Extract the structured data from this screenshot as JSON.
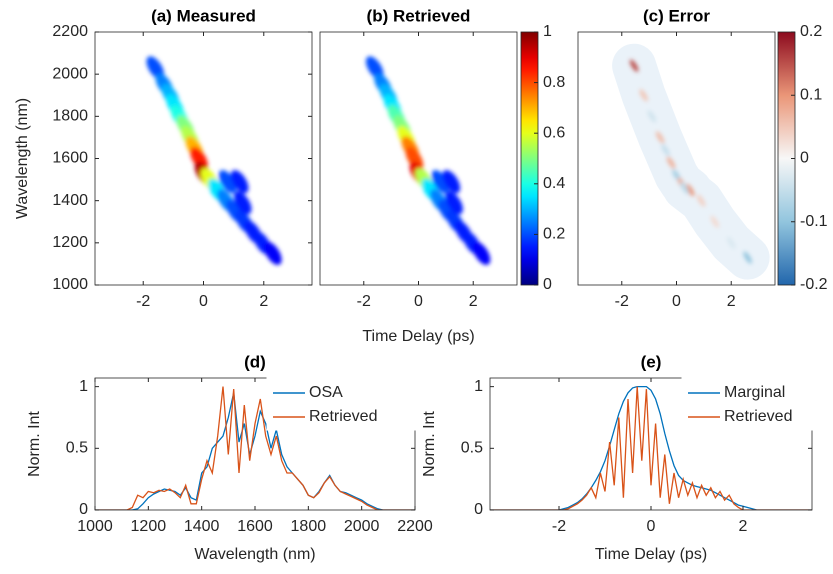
{
  "chart_data": [
    {
      "type": "heatmap",
      "title": "(a) Measured",
      "ylabel": "Wavelength (nm)",
      "x": [
        -1.6,
        -1.3,
        -1.1,
        -0.95,
        -0.8,
        -0.6,
        -0.45,
        -0.3,
        -0.15,
        0,
        0.2,
        0.45,
        0.75,
        1.05,
        1.35,
        1.65,
        1.95,
        2.3,
        0.8,
        1.2,
        1.3
      ],
      "y": [
        2030,
        1950,
        1900,
        1850,
        1800,
        1750,
        1700,
        1650,
        1600,
        1530,
        1500,
        1450,
        1400,
        1350,
        1300,
        1250,
        1200,
        1150,
        1490,
        1490,
        1390
      ],
      "values": [
        0.2,
        0.25,
        0.3,
        0.35,
        0.4,
        0.5,
        0.55,
        0.7,
        0.85,
        0.95,
        0.6,
        0.35,
        0.25,
        0.2,
        0.18,
        0.15,
        0.15,
        0.12,
        0.2,
        0.15,
        0.15
      ],
      "xlim": [
        -3.6,
        3.6
      ],
      "ylim": [
        1000,
        2200
      ],
      "xticks": [
        -2,
        0,
        2
      ],
      "yticks": [
        1000,
        1200,
        1400,
        1600,
        1800,
        2000,
        2200
      ],
      "clim": [
        0,
        1
      ],
      "colormap": "jet"
    },
    {
      "type": "heatmap",
      "title": "(b) Retrieved",
      "xlabel": "Time Delay (ps)",
      "x": [
        -1.6,
        -1.3,
        -1.1,
        -0.95,
        -0.8,
        -0.6,
        -0.45,
        -0.3,
        -0.15,
        0,
        0.2,
        0.45,
        0.75,
        1.05,
        1.35,
        1.65,
        1.95,
        2.3,
        0.8,
        1.2,
        1.3
      ],
      "y": [
        2030,
        1950,
        1900,
        1850,
        1800,
        1750,
        1700,
        1650,
        1600,
        1530,
        1500,
        1450,
        1400,
        1350,
        1300,
        1250,
        1200,
        1150,
        1490,
        1490,
        1390
      ],
      "values": [
        0.2,
        0.25,
        0.3,
        0.35,
        0.45,
        0.5,
        0.6,
        0.75,
        0.8,
        0.9,
        0.55,
        0.35,
        0.25,
        0.2,
        0.18,
        0.15,
        0.15,
        0.12,
        0.2,
        0.15,
        0.15
      ],
      "xlim": [
        -3.6,
        3.6
      ],
      "ylim": [
        1000,
        2200
      ],
      "xticks": [
        -2,
        0,
        2
      ],
      "clim": [
        0,
        1
      ],
      "colormap": "jet",
      "colorbar": true,
      "cticks": [
        0,
        0.2,
        0.4,
        0.6,
        0.8,
        1
      ]
    },
    {
      "type": "heatmap",
      "title": "(c) Error",
      "x": [
        -1.55,
        -1.2,
        -0.9,
        -0.6,
        -0.4,
        -0.2,
        0,
        0.2,
        0.5,
        0.3,
        0.9,
        1.4,
        2.0,
        2.6
      ],
      "y": [
        2040,
        1900,
        1800,
        1700,
        1640,
        1580,
        1520,
        1480,
        1450,
        1460,
        1400,
        1300,
        1200,
        1130
      ],
      "values": [
        0.15,
        0.05,
        -0.04,
        0.06,
        -0.05,
        0.07,
        -0.08,
        0.08,
        0.1,
        -0.06,
        0.04,
        0.03,
        -0.03,
        -0.1
      ],
      "xlim": [
        -3.6,
        3.6
      ],
      "ylim": [
        1000,
        2200
      ],
      "xticks": [
        -2,
        0,
        2
      ],
      "clim": [
        -0.2,
        0.2
      ],
      "colormap": "RdBu",
      "colorbar": true,
      "cticks": [
        -0.2,
        -0.1,
        0,
        0.1,
        0.2
      ]
    },
    {
      "type": "line",
      "title": "(d)",
      "xlabel": "Wavelength (nm)",
      "ylabel": "Norm. Int",
      "legend": "northeast",
      "x": [
        1000,
        1020,
        1040,
        1060,
        1080,
        1100,
        1120,
        1140,
        1160,
        1180,
        1200,
        1220,
        1240,
        1260,
        1280,
        1300,
        1320,
        1340,
        1360,
        1380,
        1400,
        1420,
        1440,
        1460,
        1480,
        1500,
        1520,
        1540,
        1560,
        1580,
        1600,
        1620,
        1640,
        1660,
        1680,
        1700,
        1720,
        1740,
        1760,
        1780,
        1800,
        1820,
        1840,
        1860,
        1880,
        1900,
        1920,
        1940,
        1960,
        1980,
        2000,
        2020,
        2040,
        2060,
        2080,
        2100,
        2120,
        2140,
        2160,
        2180,
        2200
      ],
      "xlim": [
        1000,
        2200
      ],
      "ylim": [
        0,
        1.07
      ],
      "xticks": [
        1000,
        1200,
        1400,
        1600,
        1800,
        2000,
        2200
      ],
      "yticks": [
        0,
        0.5,
        1
      ],
      "series": [
        {
          "name": "OSA",
          "color": "#0072bd",
          "values": [
            0,
            0,
            0,
            0,
            0,
            0,
            0,
            0,
            0.01,
            0.05,
            0.1,
            0.13,
            0.15,
            0.17,
            0.16,
            0.15,
            0.12,
            0.18,
            0.1,
            0.08,
            0.3,
            0.35,
            0.5,
            0.55,
            0.6,
            0.75,
            0.95,
            0.55,
            0.7,
            0.45,
            0.6,
            0.8,
            0.7,
            0.5,
            0.65,
            0.45,
            0.35,
            0.3,
            0.25,
            0.2,
            0.12,
            0.1,
            0.15,
            0.22,
            0.28,
            0.2,
            0.15,
            0.14,
            0.12,
            0.1,
            0.08,
            0.05,
            0.03,
            0.01,
            0,
            0,
            0,
            0,
            0,
            0,
            0
          ]
        },
        {
          "name": "Retrieved",
          "color": "#d95319",
          "values": [
            0,
            0,
            0,
            0,
            0,
            0,
            0,
            0.02,
            0.12,
            0.1,
            0.15,
            0.14,
            0.16,
            0.15,
            0.17,
            0.14,
            0.1,
            0.2,
            0.05,
            0.05,
            0.25,
            0.4,
            0.3,
            0.6,
            1.0,
            0.45,
            0.98,
            0.3,
            0.85,
            0.4,
            0.7,
            0.9,
            0.6,
            0.45,
            0.6,
            0.4,
            0.3,
            0.3,
            0.25,
            0.2,
            0.12,
            0.1,
            0.14,
            0.22,
            0.27,
            0.2,
            0.15,
            0.13,
            0.11,
            0.09,
            0.07,
            0.04,
            0.02,
            0,
            0,
            0,
            0,
            0,
            0,
            0,
            0
          ]
        }
      ]
    },
    {
      "type": "line",
      "title": "(e)",
      "xlabel": "Time Delay (ps)",
      "ylabel": "Norm. Int",
      "legend": "northeast",
      "x": [
        -3.5,
        -3.4,
        -3.3,
        -3.2,
        -3.1,
        -3.0,
        -2.9,
        -2.8,
        -2.7,
        -2.6,
        -2.5,
        -2.4,
        -2.3,
        -2.2,
        -2.1,
        -2.0,
        -1.9,
        -1.8,
        -1.7,
        -1.6,
        -1.5,
        -1.4,
        -1.3,
        -1.2,
        -1.1,
        -1.0,
        -0.9,
        -0.8,
        -0.7,
        -0.6,
        -0.5,
        -0.4,
        -0.3,
        -0.2,
        -0.1,
        0,
        0.1,
        0.2,
        0.3,
        0.4,
        0.5,
        0.6,
        0.7,
        0.8,
        0.9,
        1.0,
        1.1,
        1.2,
        1.3,
        1.4,
        1.5,
        1.6,
        1.7,
        1.8,
        1.9,
        2.0,
        2.1,
        2.2,
        2.3,
        2.4,
        2.5,
        2.6,
        2.7,
        2.8,
        2.9,
        3.0,
        3.1,
        3.2,
        3.3,
        3.4,
        3.5
      ],
      "xlim": [
        -3.5,
        3.5
      ],
      "ylim": [
        0,
        1.07
      ],
      "xticks": [
        -2,
        0,
        2
      ],
      "yticks": [
        0,
        0.5,
        1
      ],
      "series": [
        {
          "name": "Marginal",
          "color": "#0072bd",
          "values": [
            0,
            0,
            0,
            0,
            0,
            0,
            0,
            0,
            0,
            0,
            0,
            0,
            0,
            0,
            0,
            0,
            0.01,
            0.02,
            0.04,
            0.06,
            0.09,
            0.13,
            0.18,
            0.24,
            0.31,
            0.4,
            0.52,
            0.65,
            0.78,
            0.88,
            0.95,
            0.99,
            1.0,
            1.0,
            1.0,
            0.97,
            0.9,
            0.78,
            0.62,
            0.48,
            0.36,
            0.28,
            0.24,
            0.22,
            0.2,
            0.19,
            0.18,
            0.17,
            0.16,
            0.14,
            0.12,
            0.1,
            0.08,
            0.06,
            0.04,
            0.03,
            0.02,
            0.01,
            0,
            0,
            0,
            0,
            0,
            0,
            0,
            0,
            0,
            0,
            0,
            0,
            0
          ]
        },
        {
          "name": "Retrieved",
          "color": "#d95319",
          "values": [
            0,
            0,
            0,
            0,
            0,
            0,
            0,
            0,
            0,
            0,
            0,
            0,
            0,
            0,
            0,
            0,
            0,
            0.01,
            0.03,
            0.05,
            0.08,
            0.12,
            0.18,
            0.1,
            0.3,
            0.15,
            0.55,
            0.2,
            0.75,
            0.1,
            0.9,
            0.3,
            1.0,
            0.4,
            0.98,
            0.2,
            0.7,
            0.1,
            0.45,
            0.05,
            0.3,
            0.1,
            0.25,
            0.12,
            0.22,
            0.1,
            0.2,
            0.12,
            0.18,
            0.1,
            0.15,
            0.08,
            0.12,
            0.05,
            0.02,
            0,
            0,
            0,
            0,
            0,
            0,
            0,
            0,
            0,
            0,
            0,
            0,
            0,
            0,
            0,
            0
          ]
        }
      ]
    }
  ]
}
